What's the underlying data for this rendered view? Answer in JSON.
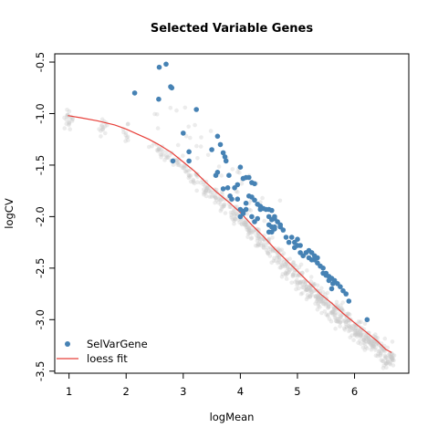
{
  "chart_data": {
    "type": "scatter",
    "title": "Selected Variable Genes",
    "xlabel": "logMean",
    "ylabel": "logCV",
    "xlim": [
      0.75,
      6.95
    ],
    "ylim": [
      -3.52,
      -0.42
    ],
    "x_ticks": [
      {
        "value": 1,
        "label": "1"
      },
      {
        "value": 2,
        "label": "2"
      },
      {
        "value": 3,
        "label": "3"
      },
      {
        "value": 4,
        "label": "4"
      },
      {
        "value": 5,
        "label": "5"
      },
      {
        "value": 6,
        "label": "6"
      }
    ],
    "y_ticks": [
      {
        "value": -0.5,
        "label": "-0.5"
      },
      {
        "value": -1.0,
        "label": "-1.0"
      },
      {
        "value": -1.5,
        "label": "-1.5"
      },
      {
        "value": -2.0,
        "label": "-2.0"
      },
      {
        "value": -2.5,
        "label": "-2.5"
      },
      {
        "value": -3.0,
        "label": "-3.0"
      },
      {
        "value": -3.5,
        "label": "-3.5"
      }
    ],
    "legend": {
      "position": "bottom-left",
      "entries": [
        {
          "label": "SelVarGene",
          "type": "point",
          "color": "#4682B4"
        },
        {
          "label": "loess fit",
          "type": "line",
          "color": "#E8403A"
        }
      ]
    },
    "colors": {
      "selected": "#4682B4",
      "background_points": "#C8C8C8",
      "loess": "#E8403A"
    },
    "loess_fit": {
      "x": [
        0.98,
        1.2,
        1.5,
        1.8,
        2.0,
        2.2,
        2.4,
        2.6,
        2.8,
        3.0,
        3.2,
        3.4,
        3.6,
        3.8,
        4.0,
        4.2,
        4.4,
        4.6,
        4.8,
        5.0,
        5.2,
        5.4,
        5.6,
        5.8,
        6.0,
        6.2,
        6.4,
        6.55,
        6.65
      ],
      "y": [
        -1.02,
        -1.04,
        -1.07,
        -1.11,
        -1.15,
        -1.2,
        -1.25,
        -1.31,
        -1.38,
        -1.47,
        -1.56,
        -1.67,
        -1.77,
        -1.86,
        -1.96,
        -2.08,
        -2.19,
        -2.31,
        -2.42,
        -2.53,
        -2.64,
        -2.75,
        -2.84,
        -2.94,
        -3.03,
        -3.12,
        -3.21,
        -3.29,
        -3.32
      ]
    },
    "selected_genes": {
      "x": [
        2.58,
        2.7,
        2.78,
        2.15,
        2.57,
        2.8,
        3.0,
        3.1,
        3.23,
        3.1,
        2.82,
        3.5,
        3.6,
        3.65,
        3.7,
        3.73,
        3.75,
        3.8,
        3.6,
        3.57,
        3.7,
        3.78,
        3.82,
        3.9,
        3.95,
        4.0,
        4.05,
        4.1,
        4.15,
        4.2,
        4.25,
        3.85,
        3.95,
        4.0,
        4.05,
        4.1,
        4.15,
        4.2,
        4.25,
        4.3,
        4.35,
        4.0,
        4.05,
        4.1,
        4.2,
        4.25,
        4.3,
        4.35,
        4.4,
        4.45,
        4.5,
        4.55,
        4.6,
        4.5,
        4.55,
        4.6,
        4.5,
        4.55,
        4.6,
        4.7,
        4.75,
        4.5,
        4.55,
        4.6,
        4.65,
        4.7,
        4.8,
        4.85,
        4.9,
        4.95,
        5.0,
        5.0,
        5.05,
        5.1,
        5.15,
        5.2,
        5.25,
        5.3,
        5.35,
        5.4,
        5.45,
        5.5,
        5.55,
        5.6,
        5.65,
        5.7,
        5.75,
        5.8,
        5.85,
        5.9,
        5.25,
        5.3,
        5.45,
        5.55,
        5.6,
        6.22,
        4.95,
        5.05,
        5.2,
        5.35,
        5.5,
        5.62
      ],
      "y": [
        -0.55,
        -0.52,
        -0.74,
        -0.8,
        -0.86,
        -0.75,
        -1.19,
        -1.37,
        -0.96,
        -1.46,
        -1.46,
        -1.35,
        -1.22,
        -1.3,
        -1.38,
        -1.42,
        -1.46,
        -1.6,
        -1.57,
        -1.6,
        -1.73,
        -1.72,
        -1.8,
        -1.72,
        -1.69,
        -1.52,
        -1.63,
        -1.62,
        -1.62,
        -1.67,
        -1.68,
        -1.83,
        -1.83,
        -1.93,
        -1.97,
        -1.87,
        -1.8,
        -1.81,
        -1.84,
        -1.88,
        -1.93,
        -2.0,
        -1.95,
        -1.93,
        -2.0,
        -2.05,
        -2.02,
        -1.9,
        -1.92,
        -1.93,
        -1.93,
        -1.94,
        -2.0,
        -2.0,
        -2.03,
        -2.02,
        -2.08,
        -2.1,
        -2.12,
        -2.1,
        -2.13,
        -2.15,
        -2.15,
        -2.1,
        -2.05,
        -2.08,
        -2.2,
        -2.25,
        -2.2,
        -2.25,
        -2.22,
        -2.28,
        -2.35,
        -2.38,
        -2.35,
        -2.4,
        -2.42,
        -2.38,
        -2.45,
        -2.48,
        -2.5,
        -2.55,
        -2.58,
        -2.6,
        -2.62,
        -2.65,
        -2.68,
        -2.72,
        -2.75,
        -2.82,
        -2.35,
        -2.42,
        -2.55,
        -2.62,
        -2.7,
        -3.0,
        -2.3,
        -2.28,
        -2.33,
        -2.4,
        -2.57,
        -2.65
      ]
    }
  }
}
